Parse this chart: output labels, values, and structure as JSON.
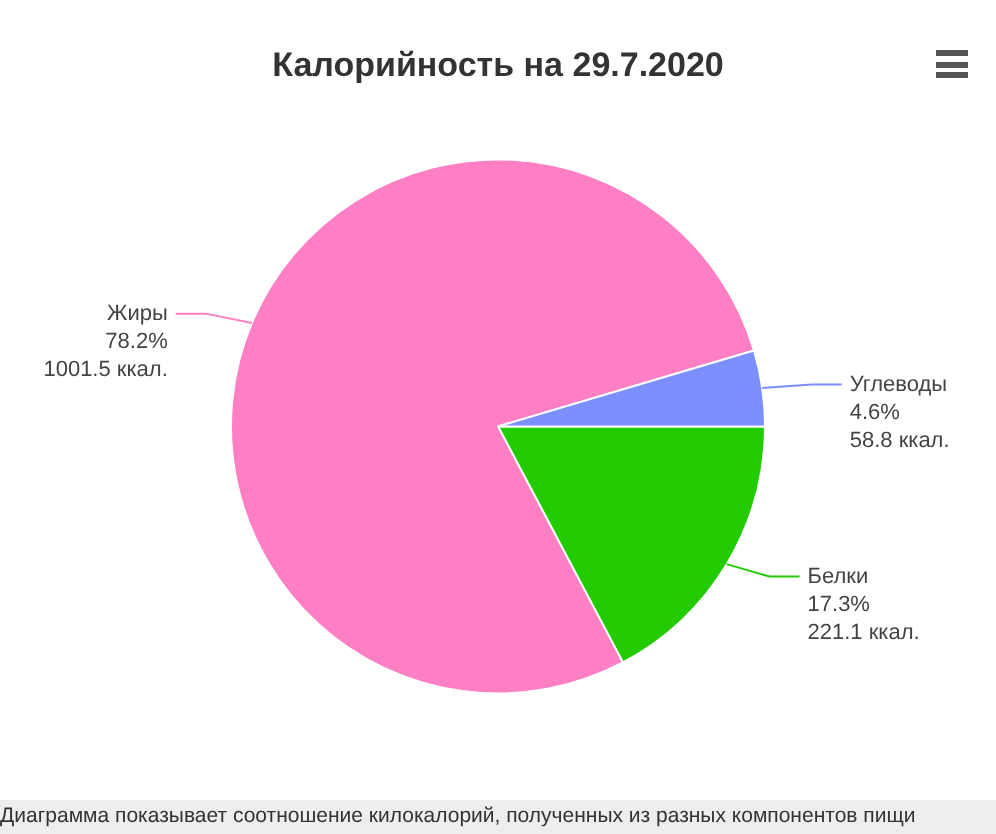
{
  "chart_data": {
    "type": "pie",
    "title": "Калорийность на 29.7.2020",
    "categories": [
      "Белки",
      "Жиры",
      "Углеводы"
    ],
    "values": [
      221.1,
      1001.5,
      58.8
    ],
    "colors": [
      "#22cc00",
      "#ff7fc4",
      "#7b8fff"
    ],
    "value_labels": [
      "17.3%\n221.1 ккал.",
      "78.2%\n1001.5 ккал.",
      "4.6%\n58.8 ккал."
    ],
    "legend": false,
    "annotations": [
      "Диаграмма показывает соотношение килокалорий, полученных из разных компонентов пищи"
    ]
  }
}
